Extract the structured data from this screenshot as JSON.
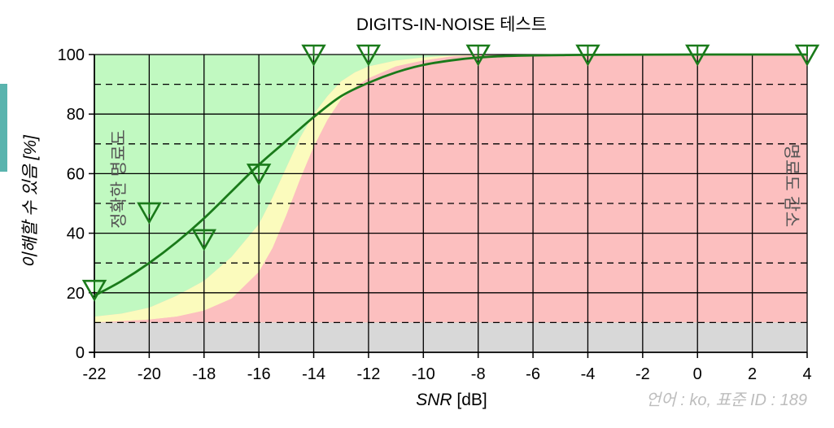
{
  "colors": {
    "zone_good": "#c1f9c1",
    "zone_mid": "#fbfbbd",
    "zone_bad": "#fcbfbf",
    "zone_floor": "#d8d8d8",
    "curve": "#1a7a1a",
    "marker": "#1a7a1a",
    "tab": "#5ab4ae"
  },
  "chart_data": {
    "type": "line",
    "title": "DIGITS-IN-NOISE 테스트",
    "xlabel_italic": "SNR",
    "xlabel_unit": " [dB]",
    "ylabel": "이해할 수 있음 [%]",
    "xlim": [
      -22,
      4
    ],
    "ylim": [
      0,
      100
    ],
    "x_ticks": [
      -22,
      -20,
      -18,
      -16,
      -14,
      -12,
      -10,
      -8,
      -6,
      -4,
      -2,
      0,
      2,
      4
    ],
    "y_ticks": [
      0,
      20,
      40,
      60,
      80,
      100
    ],
    "grid": true,
    "zone_labels": {
      "left": "정확한 명료도",
      "right": "명료도 감소"
    },
    "footer": "언어 : ko, 표준 ID : 189",
    "floor_level": 10,
    "markers": {
      "x": [
        -22,
        -20,
        -18,
        -16,
        -14,
        -12,
        -8,
        -4,
        0,
        4
      ],
      "y": [
        21,
        47,
        38,
        60,
        100,
        100,
        100,
        100,
        100,
        100
      ]
    },
    "curve": {
      "x": [
        -22,
        -21,
        -20,
        -19,
        -18,
        -17,
        -16,
        -15,
        -14,
        -13,
        -12,
        -11,
        -10,
        -9,
        -8,
        -7,
        -6,
        -5,
        -4,
        0,
        4
      ],
      "y": [
        19,
        24,
        30,
        37,
        45,
        54,
        63,
        71,
        79,
        86,
        90.5,
        94,
        96.5,
        98,
        99,
        99.5,
        99.7,
        99.8,
        99.9,
        100,
        100
      ]
    },
    "zone_good_upper": {
      "x": [
        -22,
        -21,
        -20,
        -19,
        -18,
        -17,
        -16,
        -15.5,
        -15,
        -14.5,
        -14,
        -13.5,
        -13,
        -12.5,
        -12,
        -11,
        -10,
        -9,
        -8,
        -6,
        -4,
        0,
        4
      ],
      "y": [
        12,
        13,
        15,
        19,
        24,
        32,
        43,
        52,
        62,
        72,
        80,
        86,
        91,
        94,
        96,
        98,
        99,
        99.6,
        100,
        100,
        100,
        100,
        100
      ]
    },
    "zone_mid_upper": {
      "x": [
        -22,
        -21,
        -20,
        -19,
        -18,
        -17,
        -16,
        -15.5,
        -15,
        -14.5,
        -14,
        -13.5,
        -13,
        -12.5,
        -12,
        -11,
        -10,
        -9,
        -8,
        -6,
        -4,
        0,
        4
      ],
      "y": [
        10,
        10.5,
        11,
        12,
        14,
        18,
        27,
        35,
        46,
        58,
        69,
        78,
        85,
        89,
        92,
        96,
        98,
        99.3,
        99.8,
        100,
        100,
        100,
        100
      ]
    },
    "zone_bad_upper": {
      "x": [
        -22,
        -20,
        -18,
        -17,
        -16,
        -15,
        -14,
        -13,
        -12,
        -11,
        -10,
        -9,
        -8,
        -7,
        -6,
        -4,
        0,
        4
      ],
      "y": [
        10,
        10,
        11,
        13,
        17,
        25,
        38,
        54,
        70,
        82,
        90,
        95,
        97.5,
        99,
        99.6,
        100,
        100,
        100
      ]
    }
  }
}
